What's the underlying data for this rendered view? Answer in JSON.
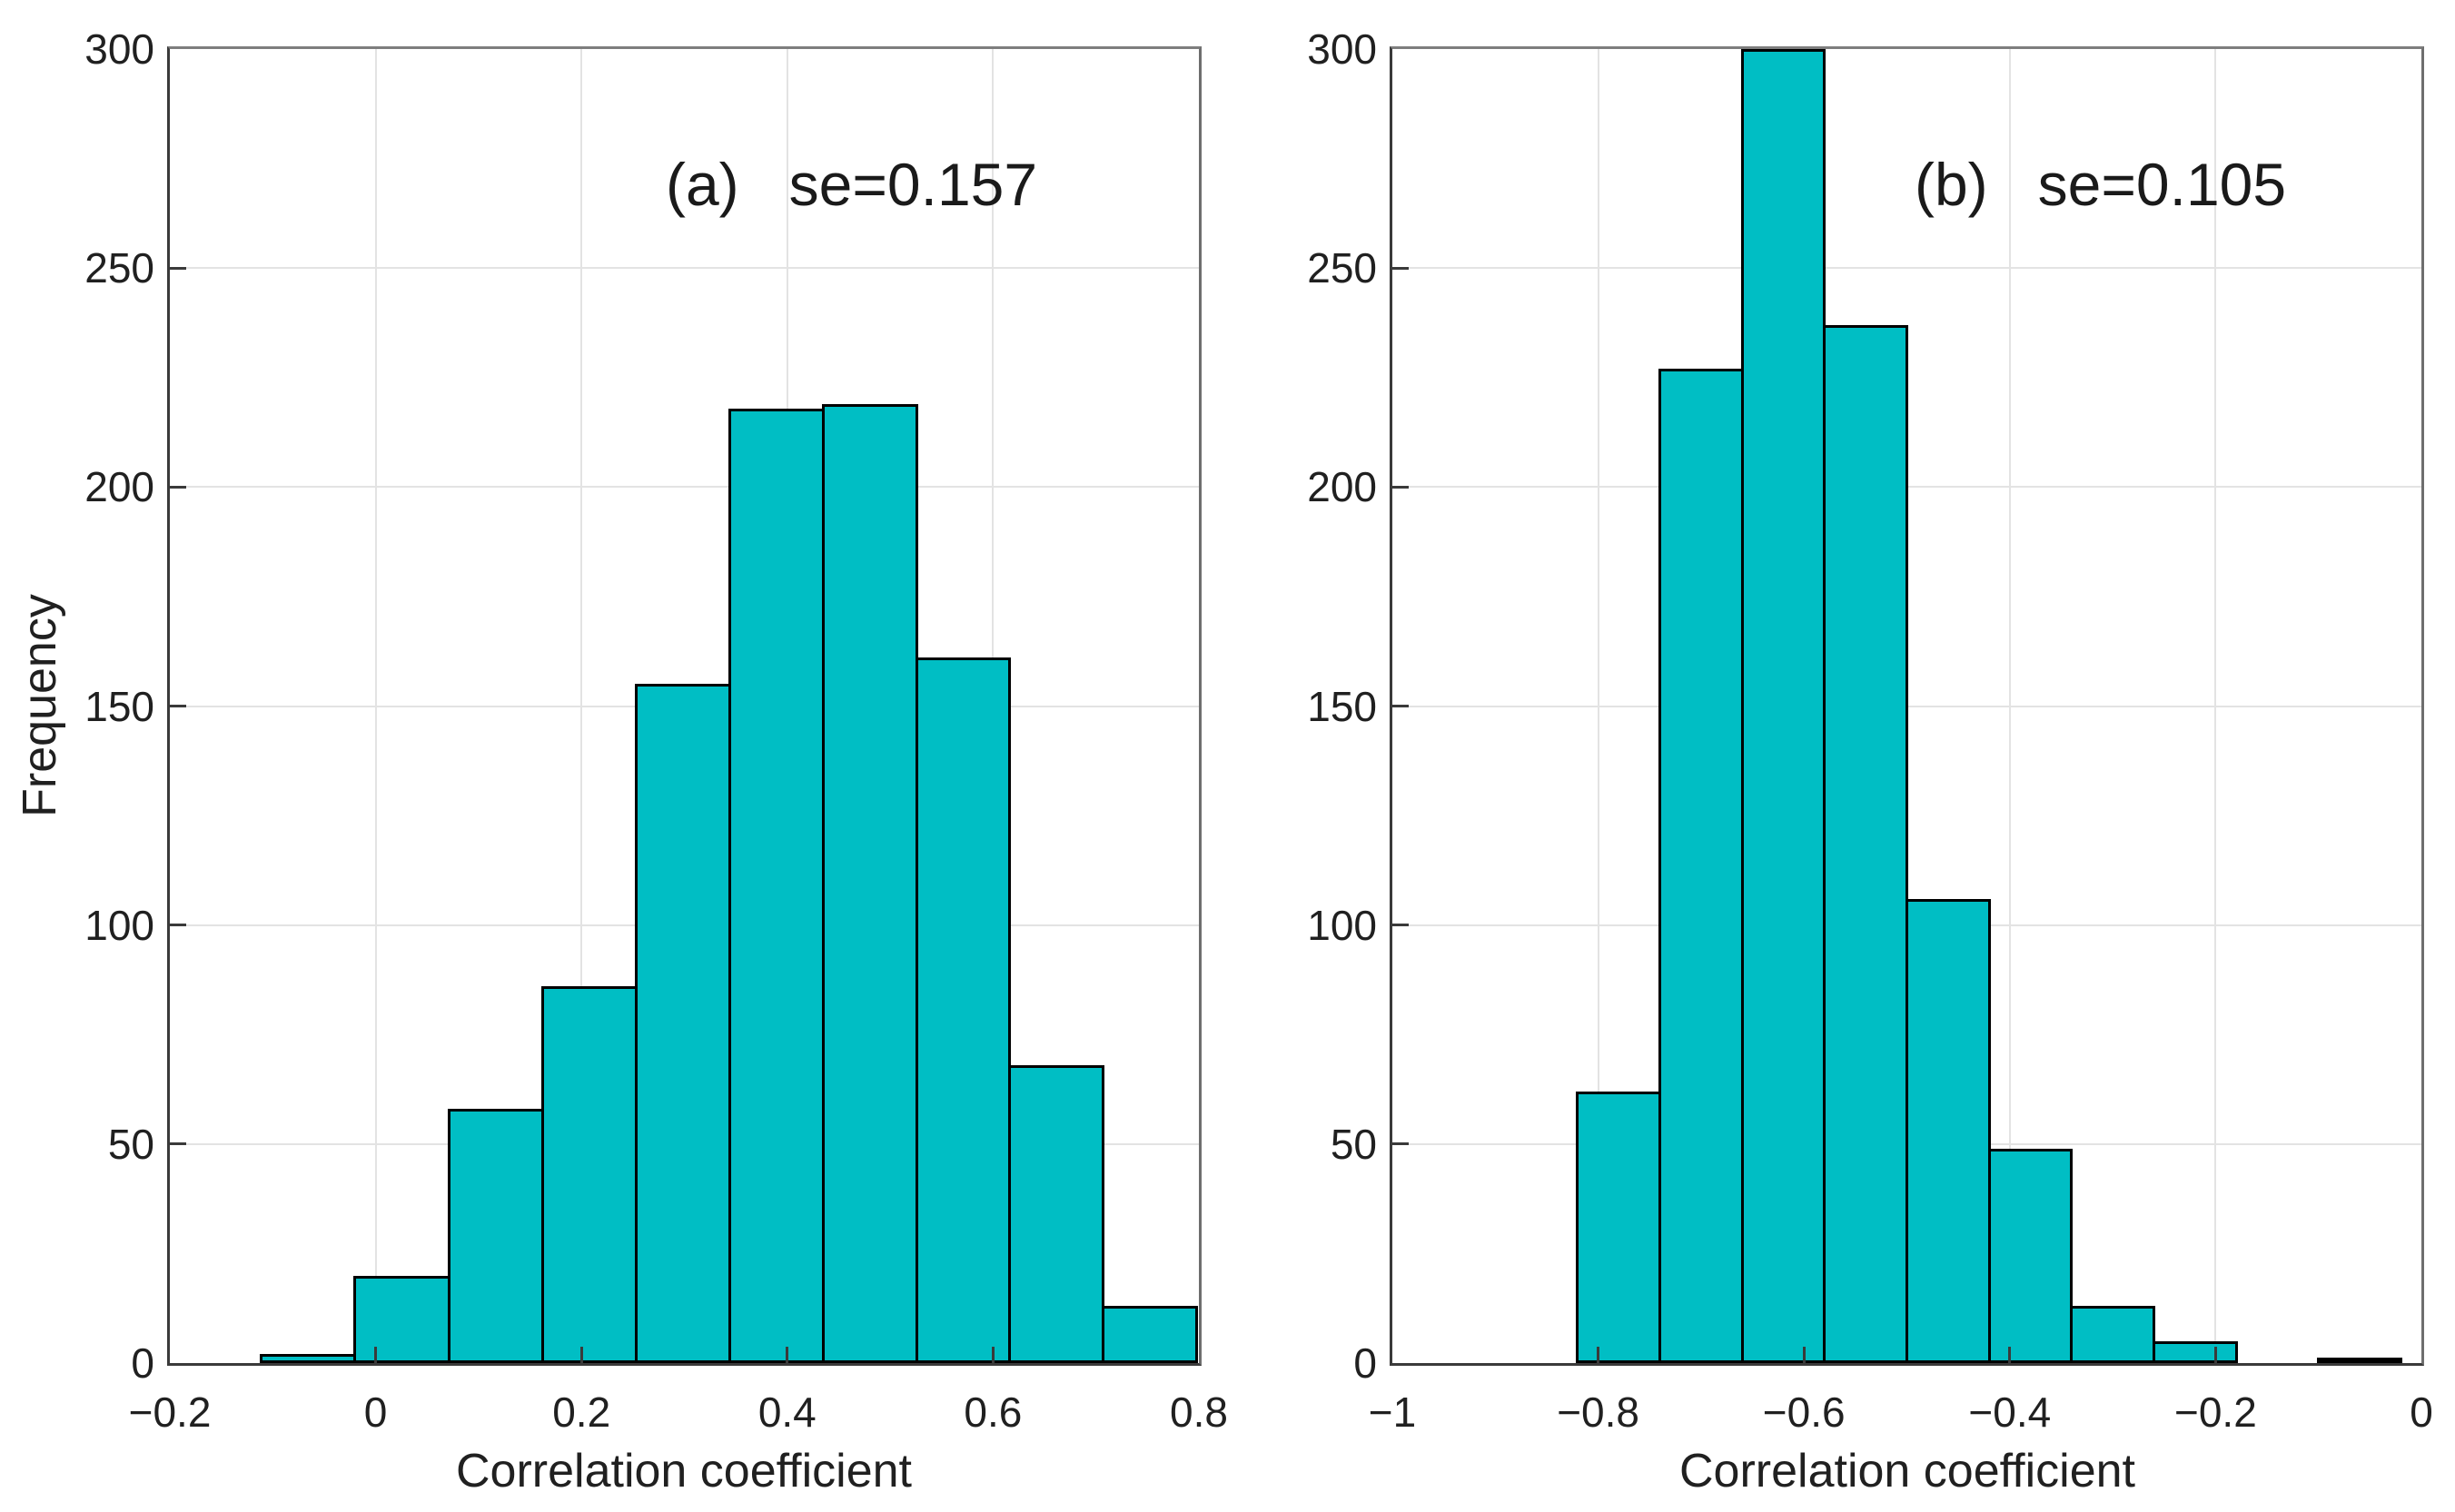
{
  "figure": {
    "background": "#ffffff",
    "bar_fill": "#00bec4",
    "bar_edge": "#000000",
    "axis_color": "#3a3a3a",
    "grid_color": "#e3e3e3",
    "text_color": "#202020"
  },
  "chart_data": [
    {
      "type": "bar",
      "subtype": "histogram",
      "panel": "a",
      "title_tag": "(a)",
      "annotation": "se=0.157",
      "xlabel": "Correlation coefficient",
      "ylabel": "Frequency",
      "xlim": [
        -0.2,
        0.8
      ],
      "ylim": [
        0,
        300
      ],
      "grid": true,
      "x_ticks": [
        -0.2,
        0,
        0.2,
        0.4,
        0.6,
        0.8
      ],
      "x_tick_labels": [
        "−0.2",
        "0",
        "0.2",
        "0.4",
        "0.6",
        "0.8"
      ],
      "y_ticks": [
        0,
        50,
        100,
        150,
        200,
        250,
        300
      ],
      "y_tick_labels": [
        "0",
        "50",
        "100",
        "150",
        "200",
        "250",
        "300"
      ],
      "bin_edges": [
        -0.111,
        -0.02,
        0.071,
        0.162,
        0.253,
        0.344,
        0.435,
        0.526,
        0.616,
        0.707,
        0.798
      ],
      "counts": [
        2,
        20,
        58,
        86,
        155,
        218,
        219,
        161,
        68,
        13
      ]
    },
    {
      "type": "bar",
      "subtype": "histogram",
      "panel": "b",
      "title_tag": "(b)",
      "annotation": "se=0.105",
      "xlabel": "Correlation coefficient",
      "ylabel": "",
      "xlim": [
        -1,
        0
      ],
      "ylim": [
        0,
        300
      ],
      "grid": true,
      "x_ticks": [
        -1,
        -0.8,
        -0.6,
        -0.4,
        -0.2,
        0
      ],
      "x_tick_labels": [
        "−1",
        "−0.8",
        "−0.6",
        "−0.4",
        "−0.2",
        "0"
      ],
      "y_ticks": [
        0,
        50,
        100,
        150,
        200,
        250,
        300
      ],
      "y_tick_labels": [
        "0",
        "50",
        "100",
        "150",
        "200",
        "250",
        "300"
      ],
      "bin_edges": [
        -0.82,
        -0.74,
        -0.66,
        -0.58,
        -0.5,
        -0.42,
        -0.34,
        -0.26,
        -0.18,
        -0.1,
        -0.02
      ],
      "counts": [
        62,
        227,
        300,
        237,
        106,
        49,
        13,
        5,
        0,
        1
      ]
    }
  ]
}
